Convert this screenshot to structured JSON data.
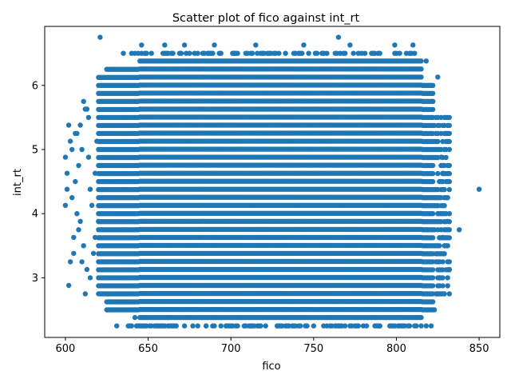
{
  "chart_data": {
    "type": "scatter",
    "title": "Scatter plot of fico against int_rt",
    "xlabel": "fico",
    "ylabel": "int_rt",
    "xlim": [
      587.5,
      862.5
    ],
    "ylim": [
      2.07,
      6.92
    ],
    "xticks": [
      600,
      650,
      700,
      750,
      800,
      850
    ],
    "yticks": [
      3,
      4,
      5,
      6
    ],
    "xtick_labels": [
      "600",
      "650",
      "700",
      "750",
      "800",
      "850"
    ],
    "ytick_labels": [
      "3",
      "4",
      "5",
      "6"
    ],
    "grid": false,
    "legend": "none",
    "marker_color": "#1f77b4",
    "dense_region": {
      "fico_range": [
        620,
        832
      ],
      "int_rt_range": [
        2.25,
        6.75
      ],
      "note_core_x": [
        625,
        815
      ],
      "core_int_rt": [
        2.5,
        6.0
      ]
    },
    "series": [
      {
        "points": [
          [
            850,
            4.38
          ],
          [
            838,
            3.75
          ],
          [
            765,
            6.75
          ],
          [
            621,
            6.75
          ],
          [
            602,
            2.88
          ],
          [
            612,
            2.75
          ],
          [
            610,
            3.25
          ],
          [
            605,
            3.63
          ],
          [
            600,
            4.13
          ],
          [
            601,
            4.63
          ],
          [
            600,
            4.88
          ],
          [
            603,
            5.13
          ],
          [
            602,
            5.38
          ],
          [
            606,
            5.25
          ],
          [
            609,
            5.38
          ],
          [
            611,
            5.75
          ],
          [
            612,
            5.63
          ],
          [
            614,
            5.5
          ],
          [
            608,
            4.75
          ],
          [
            606,
            4.5
          ],
          [
            604,
            4.25
          ],
          [
            607,
            4.0
          ],
          [
            609,
            3.88
          ],
          [
            611,
            3.5
          ],
          [
            613,
            3.13
          ],
          [
            615,
            3.0
          ],
          [
            617,
            3.38
          ],
          [
            616,
            4.13
          ],
          [
            618,
            4.63
          ],
          [
            614,
            4.88
          ],
          [
            610,
            5.0
          ],
          [
            603,
            3.25
          ],
          [
            605,
            3.38
          ],
          [
            608,
            3.75
          ],
          [
            601,
            4.38
          ],
          [
            604,
            5.0
          ],
          [
            607,
            5.25
          ],
          [
            613,
            5.63
          ],
          [
            615,
            4.38
          ],
          [
            618,
            3.63
          ],
          [
            620,
            3.88
          ],
          [
            619,
            5.13
          ],
          [
            832,
            3.13
          ],
          [
            830,
            5.25
          ],
          [
            831,
            4.25
          ],
          [
            829,
            4.0
          ],
          [
            830,
            3.5
          ],
          [
            828,
            4.63
          ],
          [
            831,
            3.88
          ],
          [
            829,
            5.0
          ],
          [
            827,
            4.88
          ],
          [
            828,
            3.63
          ],
          [
            826,
            3.0
          ],
          [
            825,
            2.75
          ],
          [
            823,
            2.5
          ],
          [
            821,
            2.25
          ],
          [
            824,
            5.5
          ],
          [
            822,
            5.75
          ],
          [
            820,
            6.0
          ],
          [
            825,
            6.13
          ],
          [
            818,
            6.38
          ],
          [
            642,
            2.38
          ],
          [
            646,
            2.25
          ],
          [
            655,
            2.25
          ],
          [
            662,
            2.38
          ],
          [
            685,
            2.25
          ],
          [
            698,
            2.25
          ],
          [
            712,
            2.25
          ],
          [
            728,
            2.25
          ],
          [
            745,
            2.25
          ],
          [
            760,
            2.25
          ],
          [
            776,
            2.25
          ],
          [
            790,
            2.25
          ],
          [
            805,
            2.25
          ],
          [
            818,
            2.25
          ],
          [
            646,
            6.63
          ],
          [
            660,
            6.63
          ],
          [
            672,
            6.63
          ],
          [
            690,
            6.63
          ],
          [
            702,
            6.5
          ],
          [
            715,
            6.63
          ],
          [
            726,
            6.5
          ],
          [
            744,
            6.63
          ],
          [
            756,
            6.5
          ],
          [
            772,
            6.63
          ],
          [
            785,
            6.5
          ],
          [
            799,
            6.63
          ],
          [
            810,
            6.63
          ]
        ]
      }
    ]
  }
}
